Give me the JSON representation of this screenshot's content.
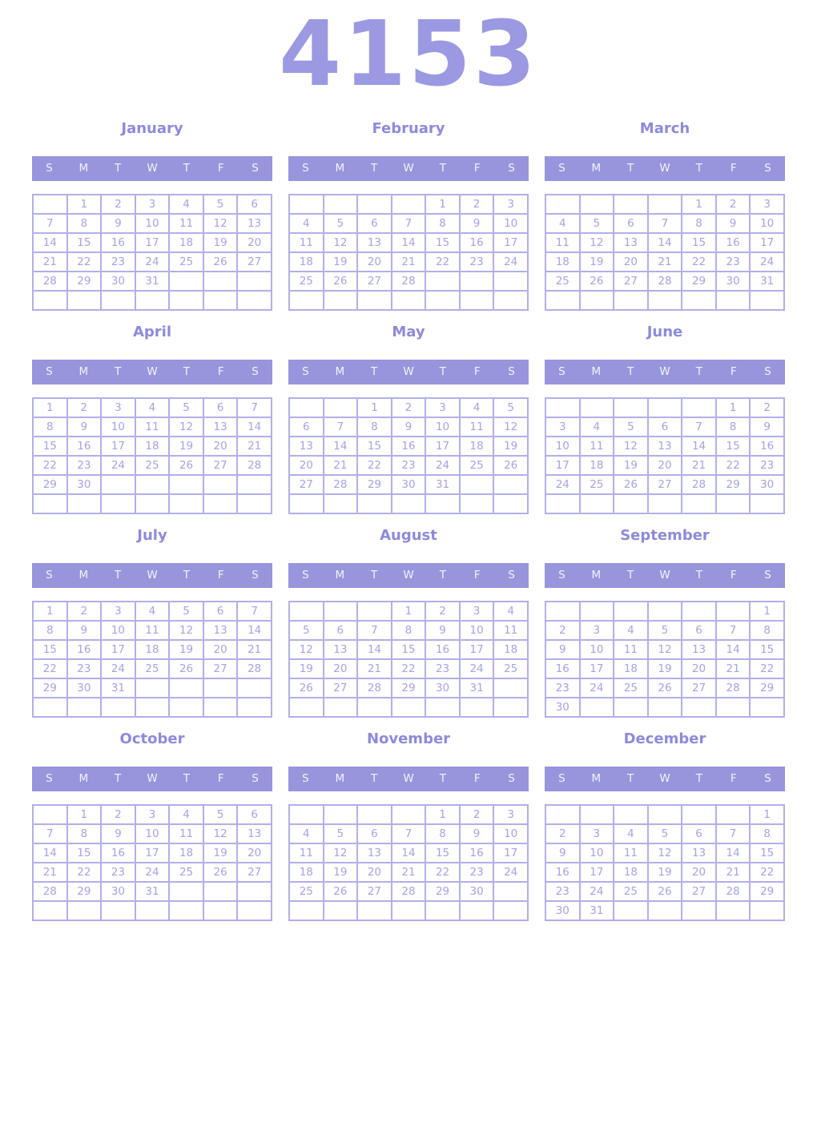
{
  "year": "4153",
  "weekdays": [
    "S",
    "M",
    "T",
    "W",
    "T",
    "F",
    "S"
  ],
  "colors": {
    "year_title": "#9b99e2",
    "month_title": "#8d8ada",
    "header_bg": "#9795dc",
    "header_text": "#f4f4fc",
    "day_number": "#a5a2e2",
    "cell_border": "#b2afe8"
  },
  "months": [
    {
      "name": "January",
      "weeks": [
        [
          "",
          "1",
          "2",
          "3",
          "4",
          "5",
          "6"
        ],
        [
          "7",
          "8",
          "9",
          "10",
          "11",
          "12",
          "13"
        ],
        [
          "14",
          "15",
          "16",
          "17",
          "18",
          "19",
          "20"
        ],
        [
          "21",
          "22",
          "23",
          "24",
          "25",
          "26",
          "27"
        ],
        [
          "28",
          "29",
          "30",
          "31",
          "",
          "",
          ""
        ],
        [
          "",
          "",
          "",
          "",
          "",
          "",
          ""
        ]
      ]
    },
    {
      "name": "February",
      "weeks": [
        [
          "",
          "",
          "",
          "",
          "1",
          "2",
          "3"
        ],
        [
          "4",
          "5",
          "6",
          "7",
          "8",
          "9",
          "10"
        ],
        [
          "11",
          "12",
          "13",
          "14",
          "15",
          "16",
          "17"
        ],
        [
          "18",
          "19",
          "20",
          "21",
          "22",
          "23",
          "24"
        ],
        [
          "25",
          "26",
          "27",
          "28",
          "",
          "",
          ""
        ],
        [
          "",
          "",
          "",
          "",
          "",
          "",
          ""
        ]
      ]
    },
    {
      "name": "March",
      "weeks": [
        [
          "",
          "",
          "",
          "",
          "1",
          "2",
          "3"
        ],
        [
          "4",
          "5",
          "6",
          "7",
          "8",
          "9",
          "10"
        ],
        [
          "11",
          "12",
          "13",
          "14",
          "15",
          "16",
          "17"
        ],
        [
          "18",
          "19",
          "20",
          "21",
          "22",
          "23",
          "24"
        ],
        [
          "25",
          "26",
          "27",
          "28",
          "29",
          "30",
          "31"
        ],
        [
          "",
          "",
          "",
          "",
          "",
          "",
          ""
        ]
      ]
    },
    {
      "name": "April",
      "weeks": [
        [
          "1",
          "2",
          "3",
          "4",
          "5",
          "6",
          "7"
        ],
        [
          "8",
          "9",
          "10",
          "11",
          "12",
          "13",
          "14"
        ],
        [
          "15",
          "16",
          "17",
          "18",
          "19",
          "20",
          "21"
        ],
        [
          "22",
          "23",
          "24",
          "25",
          "26",
          "27",
          "28"
        ],
        [
          "29",
          "30",
          "",
          "",
          "",
          "",
          ""
        ],
        [
          "",
          "",
          "",
          "",
          "",
          "",
          ""
        ]
      ]
    },
    {
      "name": "May",
      "weeks": [
        [
          "",
          "",
          "1",
          "2",
          "3",
          "4",
          "5"
        ],
        [
          "6",
          "7",
          "8",
          "9",
          "10",
          "11",
          "12"
        ],
        [
          "13",
          "14",
          "15",
          "16",
          "17",
          "18",
          "19"
        ],
        [
          "20",
          "21",
          "22",
          "23",
          "24",
          "25",
          "26"
        ],
        [
          "27",
          "28",
          "29",
          "30",
          "31",
          "",
          ""
        ],
        [
          "",
          "",
          "",
          "",
          "",
          "",
          ""
        ]
      ]
    },
    {
      "name": "June",
      "weeks": [
        [
          "",
          "",
          "",
          "",
          "",
          "1",
          "2"
        ],
        [
          "3",
          "4",
          "5",
          "6",
          "7",
          "8",
          "9"
        ],
        [
          "10",
          "11",
          "12",
          "13",
          "14",
          "15",
          "16"
        ],
        [
          "17",
          "18",
          "19",
          "20",
          "21",
          "22",
          "23"
        ],
        [
          "24",
          "25",
          "26",
          "27",
          "28",
          "29",
          "30"
        ],
        [
          "",
          "",
          "",
          "",
          "",
          "",
          ""
        ]
      ]
    },
    {
      "name": "July",
      "weeks": [
        [
          "1",
          "2",
          "3",
          "4",
          "5",
          "6",
          "7"
        ],
        [
          "8",
          "9",
          "10",
          "11",
          "12",
          "13",
          "14"
        ],
        [
          "15",
          "16",
          "17",
          "18",
          "19",
          "20",
          "21"
        ],
        [
          "22",
          "23",
          "24",
          "25",
          "26",
          "27",
          "28"
        ],
        [
          "29",
          "30",
          "31",
          "",
          "",
          "",
          ""
        ],
        [
          "",
          "",
          "",
          "",
          "",
          "",
          ""
        ]
      ]
    },
    {
      "name": "August",
      "weeks": [
        [
          "",
          "",
          "",
          "1",
          "2",
          "3",
          "4"
        ],
        [
          "5",
          "6",
          "7",
          "8",
          "9",
          "10",
          "11"
        ],
        [
          "12",
          "13",
          "14",
          "15",
          "16",
          "17",
          "18"
        ],
        [
          "19",
          "20",
          "21",
          "22",
          "23",
          "24",
          "25"
        ],
        [
          "26",
          "27",
          "28",
          "29",
          "30",
          "31",
          ""
        ],
        [
          "",
          "",
          "",
          "",
          "",
          "",
          ""
        ]
      ]
    },
    {
      "name": "September",
      "weeks": [
        [
          "",
          "",
          "",
          "",
          "",
          "",
          "1"
        ],
        [
          "2",
          "3",
          "4",
          "5",
          "6",
          "7",
          "8"
        ],
        [
          "9",
          "10",
          "11",
          "12",
          "13",
          "14",
          "15"
        ],
        [
          "16",
          "17",
          "18",
          "19",
          "20",
          "21",
          "22"
        ],
        [
          "23",
          "24",
          "25",
          "26",
          "27",
          "28",
          "29"
        ],
        [
          "30",
          "",
          "",
          "",
          "",
          "",
          ""
        ]
      ]
    },
    {
      "name": "October",
      "weeks": [
        [
          "",
          "1",
          "2",
          "3",
          "4",
          "5",
          "6"
        ],
        [
          "7",
          "8",
          "9",
          "10",
          "11",
          "12",
          "13"
        ],
        [
          "14",
          "15",
          "16",
          "17",
          "18",
          "19",
          "20"
        ],
        [
          "21",
          "22",
          "23",
          "24",
          "25",
          "26",
          "27"
        ],
        [
          "28",
          "29",
          "30",
          "31",
          "",
          "",
          ""
        ],
        [
          "",
          "",
          "",
          "",
          "",
          "",
          ""
        ]
      ]
    },
    {
      "name": "November",
      "weeks": [
        [
          "",
          "",
          "",
          "",
          "1",
          "2",
          "3"
        ],
        [
          "4",
          "5",
          "6",
          "7",
          "8",
          "9",
          "10"
        ],
        [
          "11",
          "12",
          "13",
          "14",
          "15",
          "16",
          "17"
        ],
        [
          "18",
          "19",
          "20",
          "21",
          "22",
          "23",
          "24"
        ],
        [
          "25",
          "26",
          "27",
          "28",
          "29",
          "30",
          ""
        ],
        [
          "",
          "",
          "",
          "",
          "",
          "",
          ""
        ]
      ]
    },
    {
      "name": "December",
      "weeks": [
        [
          "",
          "",
          "",
          "",
          "",
          "",
          "1"
        ],
        [
          "2",
          "3",
          "4",
          "5",
          "6",
          "7",
          "8"
        ],
        [
          "9",
          "10",
          "11",
          "12",
          "13",
          "14",
          "15"
        ],
        [
          "16",
          "17",
          "18",
          "19",
          "20",
          "21",
          "22"
        ],
        [
          "23",
          "24",
          "25",
          "26",
          "27",
          "28",
          "29"
        ],
        [
          "30",
          "31",
          "",
          "",
          "",
          "",
          ""
        ]
      ]
    }
  ]
}
